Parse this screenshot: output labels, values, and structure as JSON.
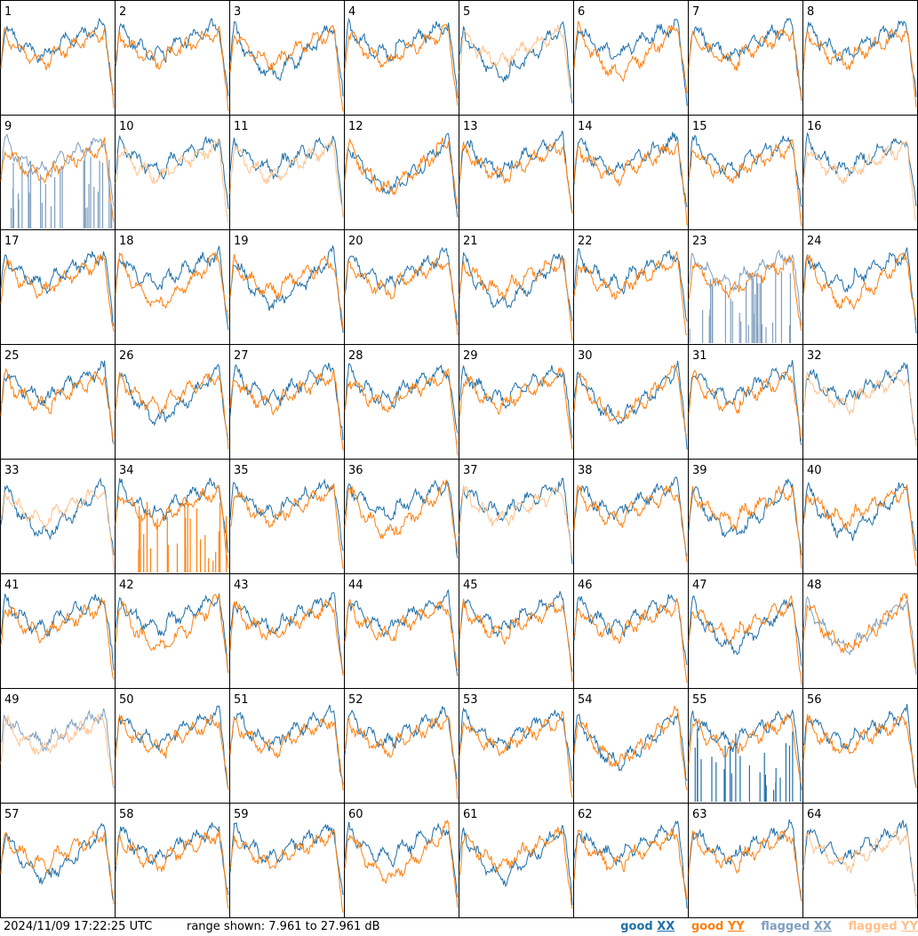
{
  "chart_data": {
    "type": "line",
    "layout": "small-multiples 8x8",
    "panels": [
      "1",
      "2",
      "3",
      "4",
      "5",
      "6",
      "7",
      "8",
      "9",
      "10",
      "11",
      "12",
      "13",
      "14",
      "15",
      "16",
      "17",
      "18",
      "19",
      "20",
      "21",
      "22",
      "23",
      "24",
      "25",
      "26",
      "27",
      "28",
      "29",
      "30",
      "31",
      "32",
      "33",
      "34",
      "35",
      "36",
      "37",
      "38",
      "39",
      "40",
      "41",
      "42",
      "43",
      "44",
      "45",
      "46",
      "47",
      "48",
      "49",
      "50",
      "51",
      "52",
      "53",
      "54",
      "55",
      "56",
      "57",
      "58",
      "59",
      "60",
      "61",
      "62",
      "63",
      "64"
    ],
    "ylim": [
      7.961,
      27.961
    ],
    "y_unit": "dB",
    "series": [
      {
        "name_prefix": "good",
        "pol": "XX",
        "color": "#1f6fa8"
      },
      {
        "name_prefix": "good",
        "pol": "YY",
        "color": "#ff7f0e"
      },
      {
        "name_prefix": "flagged",
        "pol": "XX",
        "color": "#7f9fbf"
      },
      {
        "name_prefix": "flagged",
        "pol": "YY",
        "color": "#ffc08a"
      }
    ],
    "flagged_xx_panels": [
      9,
      23,
      48,
      49
    ],
    "flagged_yy_panels": [
      5,
      10,
      11,
      16,
      32,
      33,
      37,
      49,
      64
    ],
    "grid": false
  },
  "footer": {
    "timestamp": "2024/11/09 17:22:25 UTC",
    "range": "range shown: 7.961 to 27.961 dB"
  }
}
